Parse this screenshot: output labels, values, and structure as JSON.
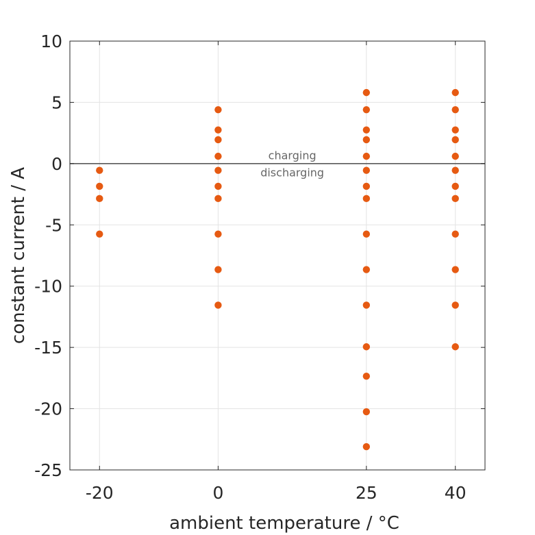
{
  "chart_data": {
    "type": "scatter",
    "xlabel": "ambient temperature / °C",
    "ylabel": "constant current / A",
    "xticks": [
      -20,
      0,
      25,
      40
    ],
    "yticks": [
      10,
      5,
      0,
      -5,
      -10,
      -15,
      -20,
      -25
    ],
    "xlim": [
      -25,
      45
    ],
    "ylim": [
      -25,
      10
    ],
    "grid": true,
    "marker_color": "#E65A12",
    "zero_line_color": "#595959",
    "annotations": [
      {
        "text": "charging",
        "x": 12.5,
        "y": 0.7
      },
      {
        "text": "discharging",
        "x": 12.5,
        "y": -0.7
      }
    ],
    "points": [
      {
        "x": -20,
        "y": -0.55
      },
      {
        "x": -20,
        "y": -1.85
      },
      {
        "x": -20,
        "y": -2.85
      },
      {
        "x": -20,
        "y": -5.75
      },
      {
        "x": 0,
        "y": 4.4
      },
      {
        "x": 0,
        "y": 2.75
      },
      {
        "x": 0,
        "y": 1.95
      },
      {
        "x": 0,
        "y": 0.6
      },
      {
        "x": 0,
        "y": -0.55
      },
      {
        "x": 0,
        "y": -1.85
      },
      {
        "x": 0,
        "y": -2.85
      },
      {
        "x": 0,
        "y": -5.75
      },
      {
        "x": 0,
        "y": -8.65
      },
      {
        "x": 0,
        "y": -11.55
      },
      {
        "x": 25,
        "y": 5.8
      },
      {
        "x": 25,
        "y": 4.4
      },
      {
        "x": 25,
        "y": 2.75
      },
      {
        "x": 25,
        "y": 1.95
      },
      {
        "x": 25,
        "y": 0.6
      },
      {
        "x": 25,
        "y": -0.55
      },
      {
        "x": 25,
        "y": -1.85
      },
      {
        "x": 25,
        "y": -2.85
      },
      {
        "x": 25,
        "y": -5.75
      },
      {
        "x": 25,
        "y": -8.65
      },
      {
        "x": 25,
        "y": -11.55
      },
      {
        "x": 25,
        "y": -14.95
      },
      {
        "x": 25,
        "y": -17.35
      },
      {
        "x": 25,
        "y": -20.25
      },
      {
        "x": 25,
        "y": -23.1
      },
      {
        "x": 40,
        "y": 5.8
      },
      {
        "x": 40,
        "y": 4.4
      },
      {
        "x": 40,
        "y": 2.75
      },
      {
        "x": 40,
        "y": 1.95
      },
      {
        "x": 40,
        "y": 0.6
      },
      {
        "x": 40,
        "y": -0.55
      },
      {
        "x": 40,
        "y": -1.85
      },
      {
        "x": 40,
        "y": -2.85
      },
      {
        "x": 40,
        "y": -5.75
      },
      {
        "x": 40,
        "y": -8.65
      },
      {
        "x": 40,
        "y": -11.55
      },
      {
        "x": 40,
        "y": -14.95
      }
    ]
  }
}
